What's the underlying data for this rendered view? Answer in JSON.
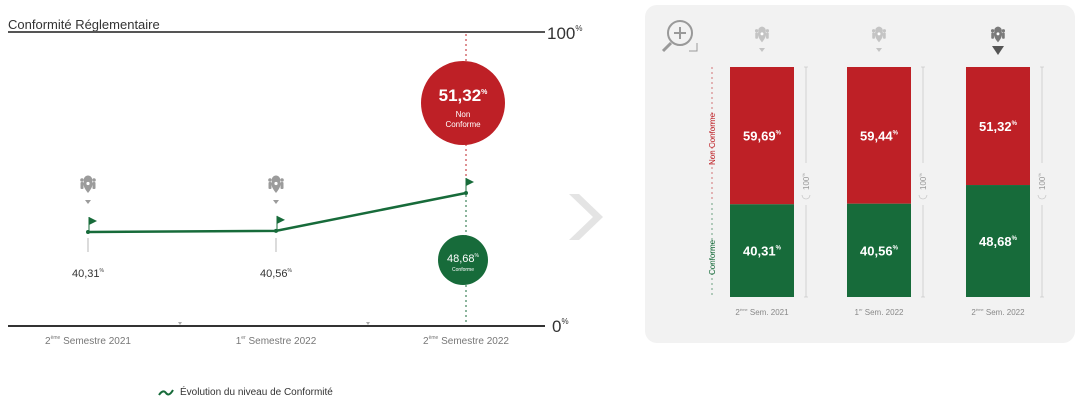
{
  "left_chart": {
    "title": "Conformité Réglementaire",
    "top_label": "100",
    "top_label_sup": "%",
    "bottom_label": "0",
    "bottom_label_sup": "%",
    "legend": "Évolution du niveau de Conformité",
    "non_conforme_bubble": {
      "value": "51,32",
      "sup": "%",
      "line1": "Non",
      "line2": "Conforme"
    },
    "conforme_bubble": {
      "value": "48,68",
      "sup": "%",
      "label": "Conforme"
    }
  },
  "right_chart": {
    "axis_top_label": "Non Conforme",
    "axis_bottom_label": "Conforme",
    "total_label": "100",
    "total_sup": "%"
  },
  "colors": {
    "conforme": "#176b3a",
    "non_conforme": "#be2026",
    "grey": "#aaaaaa",
    "panel": "#f2f2f2"
  },
  "chart_data": [
    {
      "type": "line",
      "title": "Conformité Réglementaire",
      "categories": [
        {
          "sup": "ème",
          "text": "Semestre 2021",
          "prefix": "2"
        },
        {
          "sup": "er",
          "text": "Semestre 2022",
          "prefix": "1"
        },
        {
          "sup": "ème",
          "text": "Semestre 2022",
          "prefix": "2"
        }
      ],
      "series": [
        {
          "values": [
            40.31,
            40.56,
            48.68
          ]
        }
      ],
      "value_labels": [
        "40,31",
        "40,56",
        null
      ],
      "ylim": [
        0,
        100
      ]
    },
    {
      "type": "bar",
      "stacked": true,
      "categories": [
        {
          "prefix": "2",
          "sup": "ème",
          "text": "Sem. 2021"
        },
        {
          "prefix": "1",
          "sup": "er",
          "text": "Sem. 2022"
        },
        {
          "prefix": "2",
          "sup": "ème",
          "text": "Sem. 2022"
        }
      ],
      "series": [
        {
          "name": "Conforme",
          "values": [
            40.31,
            40.56,
            48.68
          ],
          "labels": [
            "40,31",
            "40,56",
            "48,68"
          ]
        },
        {
          "name": "Non Conforme",
          "values": [
            59.69,
            59.44,
            51.32
          ],
          "labels": [
            "59,69",
            "59,44",
            "51,32"
          ]
        }
      ],
      "highlight_index": 2,
      "ylim": [
        0,
        100
      ]
    }
  ]
}
